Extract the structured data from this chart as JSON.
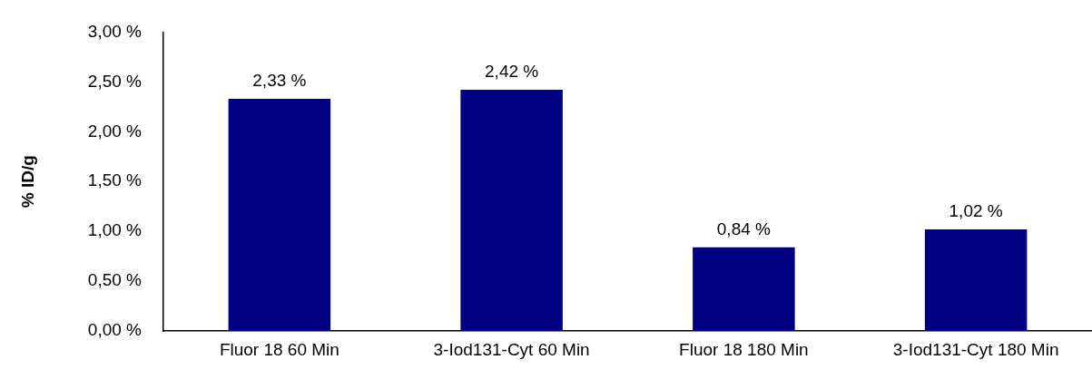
{
  "chart_data": {
    "type": "bar",
    "ylabel": "% ID/g",
    "categories": [
      "Fluor 18 60 Min",
      "3-Iod131-Cyt 60 Min",
      "Fluor 18 180 Min",
      "3-Iod131-Cyt 180 Min"
    ],
    "values": [
      2.33,
      2.42,
      0.84,
      1.02
    ],
    "color": "#000080",
    "value_labels": [
      "2,33 %",
      "2,42 %",
      "0,84 %",
      "1,02 %"
    ],
    "ylim": [
      0,
      3
    ],
    "yticks": [
      {
        "value": 0,
        "label": "0,00 %"
      },
      {
        "value": 0.5,
        "label": "0,50 %"
      },
      {
        "value": 1,
        "label": "1,00 %"
      },
      {
        "value": 1.5,
        "label": "1,50 %"
      },
      {
        "value": 2,
        "label": "2,00 %"
      },
      {
        "value": 2.5,
        "label": "2,50 %"
      },
      {
        "value": 3,
        "label": "3,00 %"
      }
    ]
  }
}
